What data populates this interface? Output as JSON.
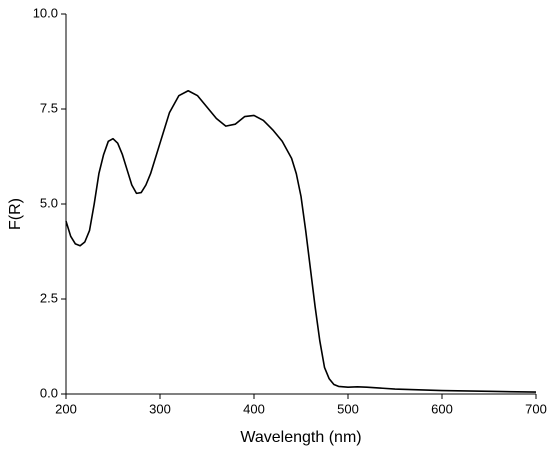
{
  "chart_data": {
    "type": "line",
    "x_label": "Wavelength (nm)",
    "y_label": "F(R)",
    "x": [
      200,
      205,
      210,
      215,
      220,
      225,
      230,
      235,
      240,
      245,
      250,
      255,
      260,
      265,
      270,
      275,
      280,
      285,
      290,
      300,
      310,
      320,
      330,
      340,
      350,
      360,
      370,
      380,
      390,
      400,
      410,
      420,
      430,
      440,
      445,
      450,
      455,
      460,
      465,
      470,
      475,
      480,
      485,
      490,
      500,
      510,
      520,
      550,
      600,
      650,
      700
    ],
    "series": [
      {
        "name": "F(R)",
        "color": "#000000",
        "values": [
          4.55,
          4.15,
          3.95,
          3.9,
          4.0,
          4.3,
          5.0,
          5.8,
          6.3,
          6.65,
          6.72,
          6.6,
          6.3,
          5.9,
          5.5,
          5.28,
          5.3,
          5.5,
          5.8,
          6.6,
          7.4,
          7.85,
          7.98,
          7.85,
          7.55,
          7.25,
          7.05,
          7.1,
          7.3,
          7.33,
          7.2,
          6.95,
          6.65,
          6.2,
          5.8,
          5.2,
          4.3,
          3.3,
          2.3,
          1.4,
          0.7,
          0.4,
          0.25,
          0.2,
          0.18,
          0.19,
          0.18,
          0.13,
          0.09,
          0.07,
          0.05
        ]
      }
    ],
    "xlim": [
      200,
      700
    ],
    "xticks": [
      200,
      300,
      400,
      500,
      600,
      700
    ],
    "ylim": [
      0,
      10
    ],
    "yticks": [
      {
        "value": 0,
        "label": "0.0"
      },
      {
        "value": 2.5,
        "label": "2.5"
      },
      {
        "value": 5,
        "label": "5.0"
      },
      {
        "value": 7.5,
        "label": "7.5"
      },
      {
        "value": 10,
        "label": "10.0"
      }
    ]
  }
}
